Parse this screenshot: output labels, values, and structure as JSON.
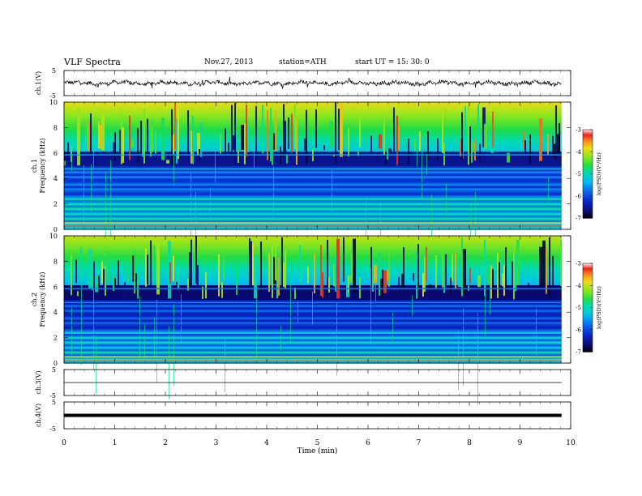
{
  "header": {
    "title": "VLF  Spectra",
    "date": "Nov.27, 2013",
    "station": "station=ATH",
    "start": "start  UT  =    15: 30: 0"
  },
  "chart_data": [
    {
      "type": "line",
      "panel": "ch1-waveform",
      "ylabel": "ch.1(V)",
      "ylim": [
        -5,
        5
      ],
      "yticks": [
        "5",
        "-5"
      ],
      "series": [
        {
          "values": [
            0.0
          ]
        }
      ]
    },
    {
      "type": "heatmap",
      "panel": "ch1-spectrogram",
      "ylabel": "ch.1\nFrequency  (kHz)",
      "ylim": [
        0,
        10
      ],
      "yticks": [
        "0",
        "2",
        "4",
        "6",
        "8",
        "10"
      ],
      "colorbar": {
        "label": "log(PSD)(V²/Hz)",
        "range": [
          -7,
          -3
        ],
        "ticks": [
          "-3",
          "-4",
          "-5",
          "-6",
          "-7"
        ]
      }
    },
    {
      "type": "heatmap",
      "panel": "ch2-spectrogram",
      "ylabel": "ch.2\nFrequency  (kHz)",
      "ylim": [
        0,
        10
      ],
      "yticks": [
        "0",
        "2",
        "4",
        "6",
        "8",
        "10"
      ],
      "colorbar": {
        "label": "log(PSD)(V²/Hz)",
        "range": [
          -7,
          -3
        ],
        "ticks": [
          "-3",
          "-4",
          "-5",
          "-6",
          "-7"
        ]
      }
    },
    {
      "type": "line",
      "panel": "ch3-waveform",
      "ylabel": "ch.3(V)",
      "ylim": [
        -5,
        5
      ],
      "yticks": [
        "5",
        "-5"
      ],
      "series": [
        {
          "values": [
            0.0
          ]
        }
      ]
    },
    {
      "type": "line",
      "panel": "ch4-waveform",
      "ylabel": "ch.4(V)",
      "ylim": [
        -5,
        5
      ],
      "yticks": [
        "5",
        "-5"
      ],
      "series": [
        {
          "values": [
            0.0
          ]
        }
      ]
    }
  ],
  "xaxis": {
    "label": "Time  (min)",
    "xlim": [
      0,
      10
    ],
    "data_end": 9.82,
    "ticks": [
      "0",
      "1",
      "2",
      "3",
      "4",
      "5",
      "6",
      "7",
      "8",
      "9",
      "10"
    ]
  }
}
